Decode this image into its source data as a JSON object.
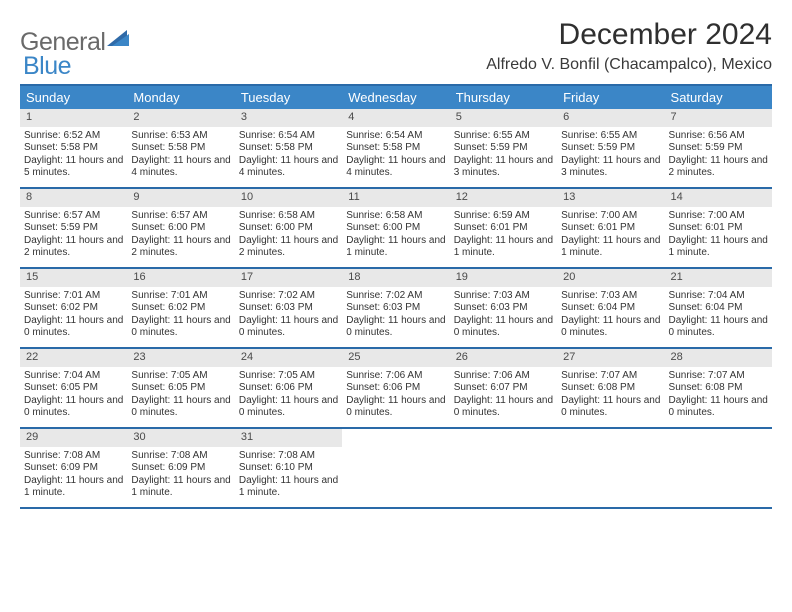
{
  "logo": {
    "text1": "General",
    "text2": "Blue"
  },
  "title": "December 2024",
  "location": "Alfredo V. Bonfil (Chacampalco), Mexico",
  "colors": {
    "header_bg": "#3b86c7",
    "header_text": "#ffffff",
    "rule": "#2a6aa8",
    "date_bg": "#e8e8e8",
    "text": "#333333",
    "logo_gray": "#6a6a6a",
    "logo_blue": "#3b86c7",
    "page_bg": "#ffffff"
  },
  "fonts": {
    "title_size": 30,
    "location_size": 16,
    "dow_size": 13,
    "date_size": 11,
    "body_size": 10
  },
  "daysOfWeek": [
    "Sunday",
    "Monday",
    "Tuesday",
    "Wednesday",
    "Thursday",
    "Friday",
    "Saturday"
  ],
  "weeks": [
    [
      {
        "date": "1",
        "sunrise": "Sunrise: 6:52 AM",
        "sunset": "Sunset: 5:58 PM",
        "daylight": "Daylight: 11 hours and 5 minutes."
      },
      {
        "date": "2",
        "sunrise": "Sunrise: 6:53 AM",
        "sunset": "Sunset: 5:58 PM",
        "daylight": "Daylight: 11 hours and 4 minutes."
      },
      {
        "date": "3",
        "sunrise": "Sunrise: 6:54 AM",
        "sunset": "Sunset: 5:58 PM",
        "daylight": "Daylight: 11 hours and 4 minutes."
      },
      {
        "date": "4",
        "sunrise": "Sunrise: 6:54 AM",
        "sunset": "Sunset: 5:58 PM",
        "daylight": "Daylight: 11 hours and 4 minutes."
      },
      {
        "date": "5",
        "sunrise": "Sunrise: 6:55 AM",
        "sunset": "Sunset: 5:59 PM",
        "daylight": "Daylight: 11 hours and 3 minutes."
      },
      {
        "date": "6",
        "sunrise": "Sunrise: 6:55 AM",
        "sunset": "Sunset: 5:59 PM",
        "daylight": "Daylight: 11 hours and 3 minutes."
      },
      {
        "date": "7",
        "sunrise": "Sunrise: 6:56 AM",
        "sunset": "Sunset: 5:59 PM",
        "daylight": "Daylight: 11 hours and 2 minutes."
      }
    ],
    [
      {
        "date": "8",
        "sunrise": "Sunrise: 6:57 AM",
        "sunset": "Sunset: 5:59 PM",
        "daylight": "Daylight: 11 hours and 2 minutes."
      },
      {
        "date": "9",
        "sunrise": "Sunrise: 6:57 AM",
        "sunset": "Sunset: 6:00 PM",
        "daylight": "Daylight: 11 hours and 2 minutes."
      },
      {
        "date": "10",
        "sunrise": "Sunrise: 6:58 AM",
        "sunset": "Sunset: 6:00 PM",
        "daylight": "Daylight: 11 hours and 2 minutes."
      },
      {
        "date": "11",
        "sunrise": "Sunrise: 6:58 AM",
        "sunset": "Sunset: 6:00 PM",
        "daylight": "Daylight: 11 hours and 1 minute."
      },
      {
        "date": "12",
        "sunrise": "Sunrise: 6:59 AM",
        "sunset": "Sunset: 6:01 PM",
        "daylight": "Daylight: 11 hours and 1 minute."
      },
      {
        "date": "13",
        "sunrise": "Sunrise: 7:00 AM",
        "sunset": "Sunset: 6:01 PM",
        "daylight": "Daylight: 11 hours and 1 minute."
      },
      {
        "date": "14",
        "sunrise": "Sunrise: 7:00 AM",
        "sunset": "Sunset: 6:01 PM",
        "daylight": "Daylight: 11 hours and 1 minute."
      }
    ],
    [
      {
        "date": "15",
        "sunrise": "Sunrise: 7:01 AM",
        "sunset": "Sunset: 6:02 PM",
        "daylight": "Daylight: 11 hours and 0 minutes."
      },
      {
        "date": "16",
        "sunrise": "Sunrise: 7:01 AM",
        "sunset": "Sunset: 6:02 PM",
        "daylight": "Daylight: 11 hours and 0 minutes."
      },
      {
        "date": "17",
        "sunrise": "Sunrise: 7:02 AM",
        "sunset": "Sunset: 6:03 PM",
        "daylight": "Daylight: 11 hours and 0 minutes."
      },
      {
        "date": "18",
        "sunrise": "Sunrise: 7:02 AM",
        "sunset": "Sunset: 6:03 PM",
        "daylight": "Daylight: 11 hours and 0 minutes."
      },
      {
        "date": "19",
        "sunrise": "Sunrise: 7:03 AM",
        "sunset": "Sunset: 6:03 PM",
        "daylight": "Daylight: 11 hours and 0 minutes."
      },
      {
        "date": "20",
        "sunrise": "Sunrise: 7:03 AM",
        "sunset": "Sunset: 6:04 PM",
        "daylight": "Daylight: 11 hours and 0 minutes."
      },
      {
        "date": "21",
        "sunrise": "Sunrise: 7:04 AM",
        "sunset": "Sunset: 6:04 PM",
        "daylight": "Daylight: 11 hours and 0 minutes."
      }
    ],
    [
      {
        "date": "22",
        "sunrise": "Sunrise: 7:04 AM",
        "sunset": "Sunset: 6:05 PM",
        "daylight": "Daylight: 11 hours and 0 minutes."
      },
      {
        "date": "23",
        "sunrise": "Sunrise: 7:05 AM",
        "sunset": "Sunset: 6:05 PM",
        "daylight": "Daylight: 11 hours and 0 minutes."
      },
      {
        "date": "24",
        "sunrise": "Sunrise: 7:05 AM",
        "sunset": "Sunset: 6:06 PM",
        "daylight": "Daylight: 11 hours and 0 minutes."
      },
      {
        "date": "25",
        "sunrise": "Sunrise: 7:06 AM",
        "sunset": "Sunset: 6:06 PM",
        "daylight": "Daylight: 11 hours and 0 minutes."
      },
      {
        "date": "26",
        "sunrise": "Sunrise: 7:06 AM",
        "sunset": "Sunset: 6:07 PM",
        "daylight": "Daylight: 11 hours and 0 minutes."
      },
      {
        "date": "27",
        "sunrise": "Sunrise: 7:07 AM",
        "sunset": "Sunset: 6:08 PM",
        "daylight": "Daylight: 11 hours and 0 minutes."
      },
      {
        "date": "28",
        "sunrise": "Sunrise: 7:07 AM",
        "sunset": "Sunset: 6:08 PM",
        "daylight": "Daylight: 11 hours and 0 minutes."
      }
    ],
    [
      {
        "date": "29",
        "sunrise": "Sunrise: 7:08 AM",
        "sunset": "Sunset: 6:09 PM",
        "daylight": "Daylight: 11 hours and 1 minute."
      },
      {
        "date": "30",
        "sunrise": "Sunrise: 7:08 AM",
        "sunset": "Sunset: 6:09 PM",
        "daylight": "Daylight: 11 hours and 1 minute."
      },
      {
        "date": "31",
        "sunrise": "Sunrise: 7:08 AM",
        "sunset": "Sunset: 6:10 PM",
        "daylight": "Daylight: 11 hours and 1 minute."
      },
      null,
      null,
      null,
      null
    ]
  ]
}
